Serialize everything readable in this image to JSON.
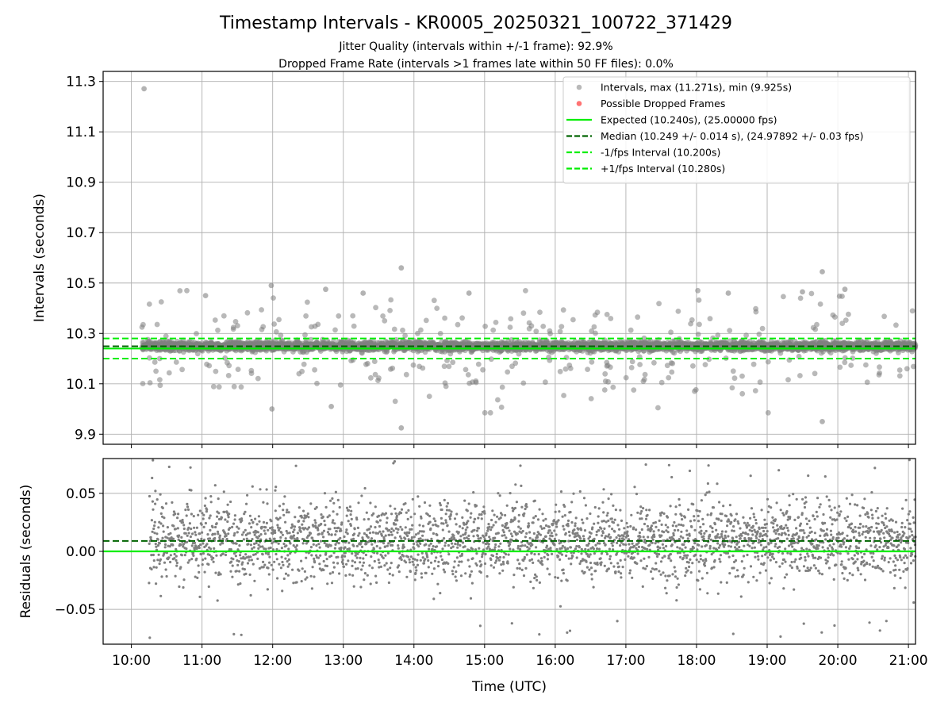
{
  "title": "Timestamp Intervals - KR0005_20250321_100722_371429",
  "subtitle_1": "Jitter Quality (intervals within +/-1 frame): 92.9%",
  "subtitle_2": "Dropped Frame Rate (intervals >1 frames late within 50 FF files): 0.0%",
  "colors": {
    "points": "#808080",
    "dropped": "#ff0000",
    "expected": "#00ee00",
    "median": "#006400",
    "interval_lines": "#00ee00",
    "grid": "#b0b0b0"
  },
  "chart_data": [
    {
      "type": "scatter",
      "panel": "top",
      "ylabel": "Intervals (seconds)",
      "xlabel": "",
      "xlim": [
        9.6,
        21.1
      ],
      "ylim": [
        9.86,
        11.34
      ],
      "yticks": [
        "9.9",
        "10.1",
        "10.3",
        "10.5",
        "10.7",
        "10.9",
        "11.1",
        "11.3"
      ],
      "ytick_values": [
        9.9,
        10.1,
        10.3,
        10.5,
        10.7,
        10.9,
        11.1,
        11.3
      ],
      "grid": true,
      "legend_position": "top-right",
      "expected": 10.24,
      "median": 10.249,
      "minus_interval": 10.2,
      "plus_interval": 10.28,
      "max": 11.271,
      "min": 9.925,
      "legend": [
        {
          "label": "Intervals, max (11.271s), min (9.925s)",
          "kind": "marker",
          "color": "#808080"
        },
        {
          "label": "Possible Dropped Frames",
          "kind": "marker",
          "color": "#ff0000"
        },
        {
          "label": "Expected (10.240s), (25.00000 fps)",
          "kind": "line-solid",
          "color": "#00ee00"
        },
        {
          "label": "Median (10.249 +/- 0.014 s), (24.97892 +/- 0.03 fps)",
          "kind": "line-dashed",
          "color": "#006400"
        },
        {
          "label": "-1/fps Interval (10.200s)",
          "kind": "line-dashed",
          "color": "#00ee00"
        },
        {
          "label": "+1/fps Interval (10.280s)",
          "kind": "line-dashed",
          "color": "#00ee00"
        }
      ],
      "outliers": [
        {
          "x": 10.18,
          "y": 11.271
        },
        {
          "x": 13.82,
          "y": 10.56
        },
        {
          "x": 19.78,
          "y": 10.545
        },
        {
          "x": 11.98,
          "y": 10.49
        },
        {
          "x": 13.82,
          "y": 9.925
        },
        {
          "x": 19.78,
          "y": 9.95
        },
        {
          "x": 11.99,
          "y": 10.0
        },
        {
          "x": 12.83,
          "y": 10.01
        },
        {
          "x": 20.1,
          "y": 10.475
        },
        {
          "x": 12.75,
          "y": 10.475
        },
        {
          "x": 13.28,
          "y": 10.46
        },
        {
          "x": 14.78,
          "y": 10.46
        },
        {
          "x": 19.5,
          "y": 10.465
        },
        {
          "x": 18.45,
          "y": 10.46
        },
        {
          "x": 11.05,
          "y": 10.45
        }
      ]
    },
    {
      "type": "scatter",
      "panel": "bottom",
      "ylabel": "Residuals (seconds)",
      "xlabel": "Time (UTC)",
      "xlim": [
        9.6,
        21.1
      ],
      "ylim": [
        -0.08,
        0.08
      ],
      "yticks": [
        "−0.05",
        "0.00",
        "0.05"
      ],
      "ytick_values": [
        -0.05,
        0.0,
        0.05
      ],
      "xticks": [
        "10:00",
        "11:00",
        "12:00",
        "13:00",
        "14:00",
        "15:00",
        "16:00",
        "17:00",
        "18:00",
        "19:00",
        "20:00",
        "21:00"
      ],
      "xtick_values": [
        10,
        11,
        12,
        13,
        14,
        15,
        16,
        17,
        18,
        19,
        20,
        21
      ],
      "grid": true,
      "zero_line": 0.0,
      "median_residual": 0.009
    }
  ]
}
